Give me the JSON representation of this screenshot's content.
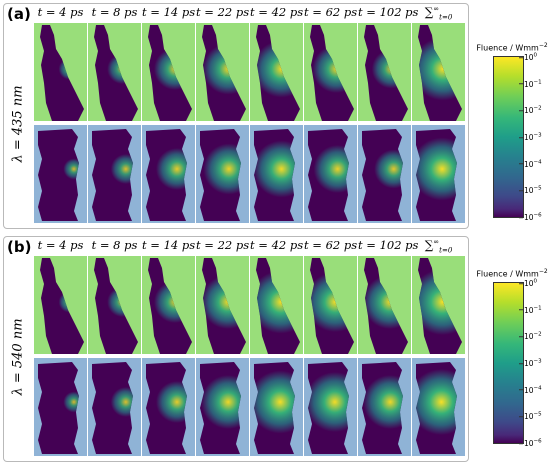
{
  "panels": [
    {
      "label": "(a)",
      "wavelength": "λ = 435 nm",
      "times": [
        "t = 4 ps",
        "t = 8 ps",
        "t = 14 ps",
        "t = 22 ps",
        "t = 42 ps",
        "t = 62 ps",
        "t = 102 ps"
      ],
      "sum_label": {
        "symbol": "∑",
        "sub": "t=0",
        "sup": "∞"
      },
      "glow": [
        0.15,
        0.3,
        0.5,
        0.65,
        0.75,
        0.6,
        0.45,
        0.85
      ]
    },
    {
      "label": "(b)",
      "wavelength": "λ = 540 nm",
      "times": [
        "t = 4 ps",
        "t = 8 ps",
        "t = 14 ps",
        "t = 22 ps",
        "t = 42 ps",
        "t = 62 ps",
        "t = 102 ps"
      ],
      "sum_label": {
        "symbol": "∑",
        "sub": "t=0",
        "sup": "∞"
      },
      "glow": [
        0.15,
        0.3,
        0.5,
        0.7,
        0.85,
        0.8,
        0.7,
        0.9
      ]
    }
  ],
  "colorbar": {
    "title_prefix": "Fluence / Wmm",
    "title_exp": "−2",
    "base": "10",
    "ticks": [
      "0",
      "−1",
      "−2",
      "−3",
      "−4",
      "−5",
      "−6"
    ]
  },
  "colors": {
    "green_bg": "#99de7a",
    "blue_bg": "#8fb3d6",
    "tissue_dark": "#440154",
    "glow_yellow": "#fde725",
    "glow_green": "#35b779",
    "glow_teal": "#21908d"
  }
}
